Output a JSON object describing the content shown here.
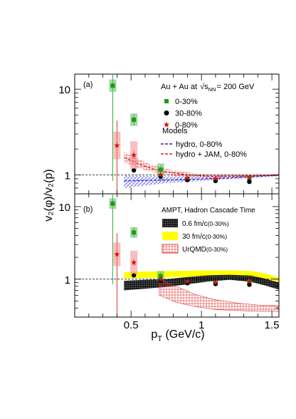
{
  "chart_data": [
    {
      "type": "scatter",
      "panel_label": "(a)",
      "yscale": "log",
      "xlim": [
        0.1,
        1.55
      ],
      "ylim": [
        0.6,
        15
      ],
      "reference_line": 1,
      "header": "Au + Au at",
      "energy_symbol": "√s",
      "energy_sub": "NN",
      "energy_value": "= 200 GeV",
      "models_title": "Models",
      "series": [
        {
          "name": "0-30%",
          "marker": "square",
          "color": "#1a9a1a",
          "points": [
            [
              0.37,
              11.0
            ],
            [
              0.52,
              4.4
            ],
            [
              0.71,
              1.15
            ],
            [
              0.9,
              0.9
            ],
            [
              1.1,
              0.87
            ],
            [
              1.34,
              0.92
            ]
          ]
        },
        {
          "name": "30-80%",
          "marker": "circle",
          "color": "#000000",
          "points": [
            [
              0.52,
              1.13
            ],
            [
              0.71,
              0.95
            ],
            [
              0.9,
              0.87
            ],
            [
              1.1,
              0.85
            ],
            [
              1.34,
              0.83
            ]
          ]
        },
        {
          "name": "0-80%",
          "marker": "star",
          "color": "#e01010",
          "points": [
            [
              0.4,
              2.2
            ],
            [
              0.52,
              1.7
            ],
            [
              0.71,
              1.0
            ],
            [
              0.9,
              0.92
            ],
            [
              1.1,
              0.9
            ],
            [
              1.34,
              0.93
            ]
          ]
        }
      ],
      "models": [
        {
          "name": "hydro, 0-80%",
          "color": "#2222cc",
          "x": [
            0.45,
            0.6,
            0.75,
            0.9,
            1.05,
            1.2,
            1.35,
            1.55
          ],
          "y": [
            0.85,
            0.86,
            0.87,
            0.88,
            0.9,
            0.92,
            0.95,
            0.99
          ],
          "band_lo": [
            0.7,
            0.75,
            0.8,
            0.83,
            0.86,
            0.89,
            0.92,
            0.96
          ],
          "band_hi": [
            0.98,
            0.97,
            0.96,
            0.96,
            0.97,
            0.98,
            0.99,
            1.02
          ]
        },
        {
          "name": "hydro + JAM, 0-80%",
          "color": "#e02020",
          "x": [
            0.45,
            0.55,
            0.65,
            0.75,
            0.9,
            1.05,
            1.2,
            1.35,
            1.55
          ],
          "y": [
            1.6,
            1.35,
            1.18,
            1.08,
            1.0,
            0.96,
            0.96,
            0.97,
            0.99
          ],
          "band_lo": [
            1.4,
            1.2,
            1.08,
            1.0,
            0.94,
            0.92,
            0.93,
            0.95,
            0.97
          ],
          "band_hi": [
            1.85,
            1.55,
            1.3,
            1.17,
            1.07,
            1.01,
            1.0,
            1.0,
            1.01
          ]
        }
      ]
    },
    {
      "type": "scatter",
      "panel_label": "(b)",
      "yscale": "log",
      "xlim": [
        0.1,
        1.55
      ],
      "ylim": [
        0.3,
        15
      ],
      "reference_line": 1,
      "models_title": "AMPT, Hadron Cascade Time",
      "series": [
        {
          "name": "0-30%",
          "marker": "square",
          "color": "#1a9a1a",
          "points": [
            [
              0.37,
              11.0
            ],
            [
              0.52,
              4.4
            ],
            [
              0.71,
              1.1
            ],
            [
              0.9,
              0.9
            ],
            [
              1.1,
              0.88
            ],
            [
              1.34,
              0.92
            ]
          ]
        },
        {
          "name": "30-80%",
          "marker": "circle",
          "color": "#000000",
          "points": [
            [
              0.52,
              1.13
            ],
            [
              0.71,
              0.95
            ],
            [
              0.9,
              0.88
            ],
            [
              1.1,
              0.86
            ],
            [
              1.34,
              0.84
            ]
          ]
        },
        {
          "name": "0-80%",
          "marker": "star",
          "color": "#e01010",
          "points": [
            [
              0.4,
              2.2
            ],
            [
              0.52,
              1.7
            ],
            [
              0.71,
              1.0
            ],
            [
              0.9,
              0.93
            ],
            [
              1.1,
              0.9
            ],
            [
              1.34,
              0.93
            ]
          ]
        }
      ],
      "models": [
        {
          "name": "0.6 fm/c",
          "suffix": "(0-30%)",
          "style": "black",
          "x": [
            0.45,
            0.6,
            0.75,
            0.9,
            1.05,
            1.2,
            1.35,
            1.45,
            1.55
          ],
          "band_lo": [
            0.7,
            0.74,
            0.78,
            0.85,
            0.93,
            0.98,
            0.92,
            0.82,
            0.72
          ],
          "band_hi": [
            0.95,
            0.98,
            1.0,
            1.07,
            1.13,
            1.15,
            1.12,
            1.02,
            0.9
          ]
        },
        {
          "name": "30 fm/c",
          "suffix": "(0-30%)",
          "style": "yellow",
          "x": [
            0.45,
            0.6,
            0.75,
            0.9,
            1.05,
            1.2,
            1.35,
            1.45,
            1.55
          ],
          "band_lo": [
            1.03,
            1.04,
            1.06,
            1.08,
            1.1,
            1.12,
            1.1,
            1.02,
            0.92
          ],
          "band_hi": [
            1.25,
            1.27,
            1.29,
            1.31,
            1.32,
            1.32,
            1.3,
            1.2,
            1.05
          ]
        },
        {
          "name": "UrQMD",
          "suffix": "(0-30%)",
          "style": "hatch",
          "x": [
            0.7,
            0.82,
            0.95,
            1.1,
            1.25,
            1.4,
            1.55
          ],
          "band_lo": [
            0.6,
            0.48,
            0.42,
            0.38,
            0.37,
            0.36,
            0.36
          ],
          "band_hi": [
            1.0,
            0.8,
            0.62,
            0.52,
            0.47,
            0.44,
            0.43
          ]
        }
      ]
    }
  ],
  "axes": {
    "ylabel": "v₂(φ)/v₂(p)",
    "xlabel": "p",
    "xlabel_sub": "T",
    "xlabel_unit": " (GeV/c)",
    "xtick_labels": [
      "0.5",
      "1",
      "1.5"
    ],
    "ytick_labels_a": [
      "10",
      "1"
    ],
    "ytick_labels_b": [
      "10",
      "1"
    ]
  }
}
